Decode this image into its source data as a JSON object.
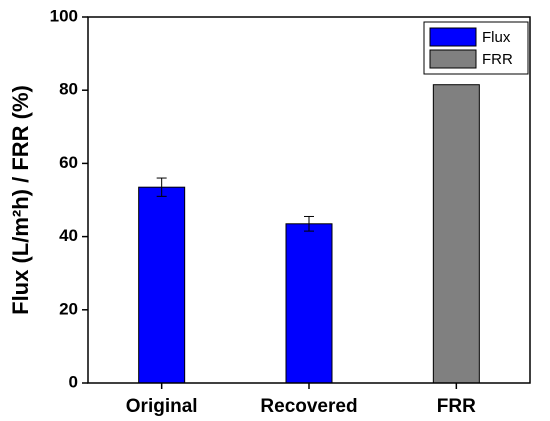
{
  "chart_data": {
    "type": "bar",
    "y_label": "Flux (L/m²h) / FRR (%)",
    "categories": [
      "Original",
      "Recovered",
      "FRR"
    ],
    "series": [
      {
        "name": "Flux",
        "color": "#0000ff",
        "values": [
          53.5,
          43.5,
          null
        ],
        "errors": [
          2.5,
          2,
          null
        ]
      },
      {
        "name": "FRR",
        "color": "#808080",
        "values": [
          null,
          null,
          81.5
        ],
        "errors": [
          null,
          null,
          null
        ]
      }
    ],
    "ylim": [
      0,
      100
    ],
    "yticks": [
      0,
      20,
      40,
      60,
      80,
      100
    ],
    "grid": false,
    "legend": "upper right"
  }
}
